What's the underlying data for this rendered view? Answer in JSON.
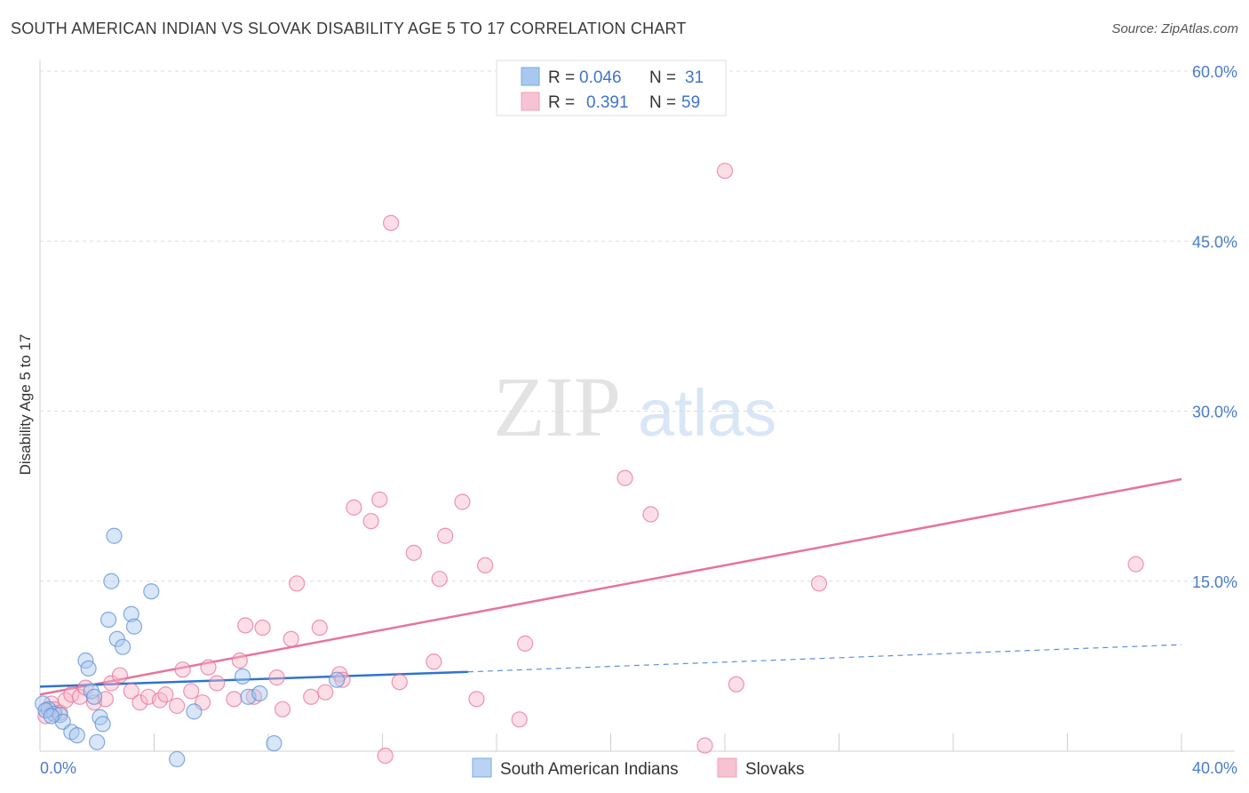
{
  "header": {
    "title": "SOUTH AMERICAN INDIAN VS SLOVAK DISABILITY AGE 5 TO 17 CORRELATION CHART",
    "source": "Source: ZipAtlas.com"
  },
  "watermark": {
    "zip": "ZIP",
    "atlas": "atlas"
  },
  "legend_box": {
    "rows": [
      {
        "r_label": "R =",
        "r_value": "0.046",
        "n_label": "N =",
        "n_value": "31",
        "color": "#a9c8f0"
      },
      {
        "r_label": "R =",
        "r_value": "0.391",
        "n_label": "N =",
        "n_value": "59",
        "color": "#f7b6c8"
      }
    ]
  },
  "bottom_legend": [
    "South American Indians",
    "Slovaks"
  ],
  "chart_data": {
    "type": "scatter",
    "title": "SOUTH AMERICAN INDIAN VS SLOVAK DISABILITY AGE 5 TO 17 CORRELATION CHART",
    "xlabel": "",
    "ylabel": "Disability Age 5 to 17",
    "xlim": [
      0,
      40
    ],
    "ylim": [
      0,
      60
    ],
    "x_tick_labels": [
      "0.0%",
      "40.0%"
    ],
    "y_tick_labels": [
      "15.0%",
      "30.0%",
      "45.0%",
      "60.0%"
    ],
    "y_ticks": [
      15,
      30,
      45,
      60
    ],
    "grid": true,
    "legend_position": "bottom",
    "series": [
      {
        "name": "South American Indians",
        "color": "#5b8fd6",
        "fill": "#a9c8f0",
        "trend": {
          "x": [
            0,
            15
          ],
          "y": [
            5.7,
            7.0
          ],
          "dashed_extension_to": [
            40,
            9.4
          ]
        },
        "points": [
          [
            0.1,
            4.2
          ],
          [
            0.3,
            3.7
          ],
          [
            0.5,
            3.3
          ],
          [
            0.7,
            3.2
          ],
          [
            0.8,
            2.6
          ],
          [
            1.1,
            1.7
          ],
          [
            1.3,
            1.4
          ],
          [
            1.6,
            8.0
          ],
          [
            1.7,
            7.3
          ],
          [
            1.8,
            5.3
          ],
          [
            1.9,
            4.8
          ],
          [
            2.0,
            0.8
          ],
          [
            2.1,
            3.0
          ],
          [
            2.2,
            2.4
          ],
          [
            2.4,
            11.6
          ],
          [
            2.5,
            15.0
          ],
          [
            2.6,
            19.0
          ],
          [
            2.7,
            9.9
          ],
          [
            2.9,
            9.2
          ],
          [
            3.2,
            12.1
          ],
          [
            3.3,
            11.0
          ],
          [
            3.9,
            14.1
          ],
          [
            4.8,
            -0.7
          ],
          [
            5.4,
            3.5
          ],
          [
            7.1,
            6.6
          ],
          [
            7.3,
            4.8
          ],
          [
            7.7,
            5.1
          ],
          [
            8.2,
            0.7
          ],
          [
            10.4,
            6.3
          ],
          [
            0.2,
            3.6
          ],
          [
            0.4,
            3.1
          ]
        ]
      },
      {
        "name": "Slovaks",
        "color": "#e8739b",
        "fill": "#f7b6c8",
        "trend": {
          "x": [
            0,
            40
          ],
          "y": [
            5.0,
            24.0
          ]
        },
        "points": [
          [
            0.2,
            3.1
          ],
          [
            0.4,
            4.2
          ],
          [
            0.5,
            3.7
          ],
          [
            0.7,
            3.4
          ],
          [
            0.9,
            4.5
          ],
          [
            1.1,
            5.0
          ],
          [
            1.4,
            4.8
          ],
          [
            1.6,
            5.6
          ],
          [
            1.9,
            4.3
          ],
          [
            2.3,
            4.6
          ],
          [
            2.5,
            6.0
          ],
          [
            2.8,
            6.7
          ],
          [
            3.2,
            5.3
          ],
          [
            3.5,
            4.3
          ],
          [
            3.8,
            4.8
          ],
          [
            4.2,
            4.5
          ],
          [
            4.4,
            5.0
          ],
          [
            4.8,
            4.0
          ],
          [
            5.0,
            7.2
          ],
          [
            5.3,
            5.3
          ],
          [
            5.7,
            4.3
          ],
          [
            5.9,
            7.4
          ],
          [
            6.2,
            6.0
          ],
          [
            6.8,
            4.6
          ],
          [
            7.0,
            8.0
          ],
          [
            7.2,
            11.1
          ],
          [
            7.5,
            4.8
          ],
          [
            7.8,
            10.9
          ],
          [
            8.3,
            6.5
          ],
          [
            8.5,
            3.7
          ],
          [
            8.8,
            9.9
          ],
          [
            9.0,
            14.8
          ],
          [
            9.5,
            4.8
          ],
          [
            9.8,
            10.9
          ],
          [
            10.0,
            5.2
          ],
          [
            10.5,
            6.8
          ],
          [
            10.6,
            6.3
          ],
          [
            11.0,
            21.5
          ],
          [
            11.6,
            20.3
          ],
          [
            11.9,
            22.2
          ],
          [
            12.1,
            -0.4
          ],
          [
            12.6,
            6.1
          ],
          [
            12.3,
            46.6
          ],
          [
            13.1,
            17.5
          ],
          [
            13.8,
            7.9
          ],
          [
            14.0,
            15.2
          ],
          [
            14.2,
            19.0
          ],
          [
            14.8,
            22.0
          ],
          [
            15.3,
            4.6
          ],
          [
            15.6,
            16.4
          ],
          [
            16.8,
            2.8
          ],
          [
            17.0,
            9.5
          ],
          [
            20.5,
            24.1
          ],
          [
            21.4,
            20.9
          ],
          [
            23.3,
            0.5
          ],
          [
            24.0,
            51.2
          ],
          [
            24.4,
            5.9
          ],
          [
            27.3,
            14.8
          ],
          [
            38.4,
            16.5
          ]
        ]
      }
    ]
  }
}
